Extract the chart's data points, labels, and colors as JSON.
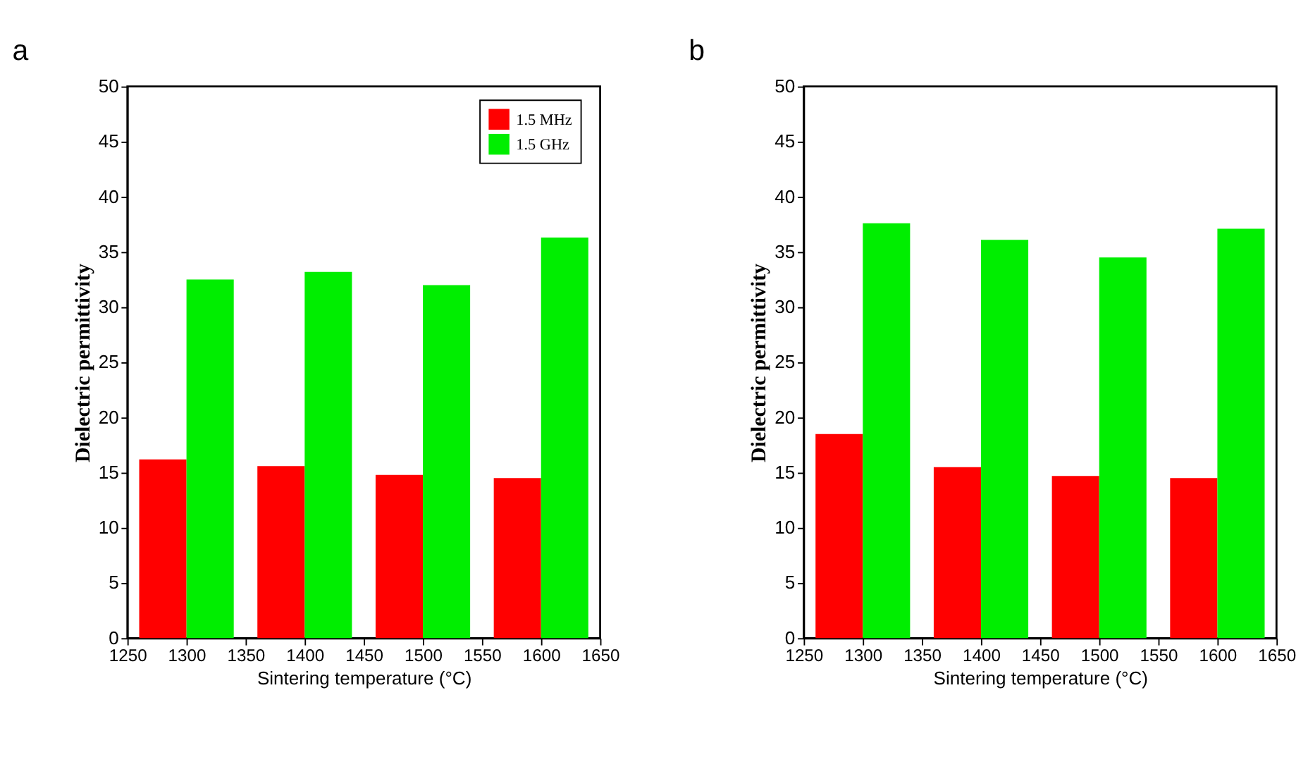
{
  "chart_data": [
    {
      "type": "bar",
      "title": "a",
      "xlabel": "Sintering temperature (°C)",
      "ylabel": "Dielectric permittivity",
      "x": [
        1300,
        1400,
        1500,
        1600
      ],
      "xlim": [
        1250,
        1650
      ],
      "xticks": [
        1250,
        1300,
        1350,
        1400,
        1450,
        1500,
        1550,
        1600,
        1650
      ],
      "ylim": [
        0,
        50
      ],
      "yticks": [
        0,
        5,
        10,
        15,
        20,
        25,
        30,
        35,
        40,
        45,
        50
      ],
      "legend": "top right",
      "grid": false,
      "series": [
        {
          "name": "1.5 MHz",
          "color": "#ff0000",
          "values": [
            16.2,
            15.6,
            14.8,
            14.5
          ]
        },
        {
          "name": "1.5 GHz",
          "color": "#00ee00",
          "values": [
            32.5,
            33.2,
            32.0,
            36.3
          ]
        }
      ]
    },
    {
      "type": "bar",
      "title": "b",
      "xlabel": "Sintering temperature (°C)",
      "ylabel": "Dielectric permittivity",
      "x": [
        1300,
        1400,
        1500,
        1600
      ],
      "xlim": [
        1250,
        1650
      ],
      "xticks": [
        1250,
        1300,
        1350,
        1400,
        1450,
        1500,
        1550,
        1600,
        1650
      ],
      "ylim": [
        0,
        50
      ],
      "yticks": [
        0,
        5,
        10,
        15,
        20,
        25,
        30,
        35,
        40,
        45,
        50
      ],
      "legend": "top right",
      "grid": false,
      "series": [
        {
          "name": "1.5 MHz",
          "color": "#ff0000",
          "values": [
            18.5,
            15.5,
            14.7,
            14.5
          ]
        },
        {
          "name": "1.5 GHz",
          "color": "#00ee00",
          "values": [
            37.6,
            36.1,
            34.5,
            37.1
          ]
        }
      ]
    }
  ]
}
